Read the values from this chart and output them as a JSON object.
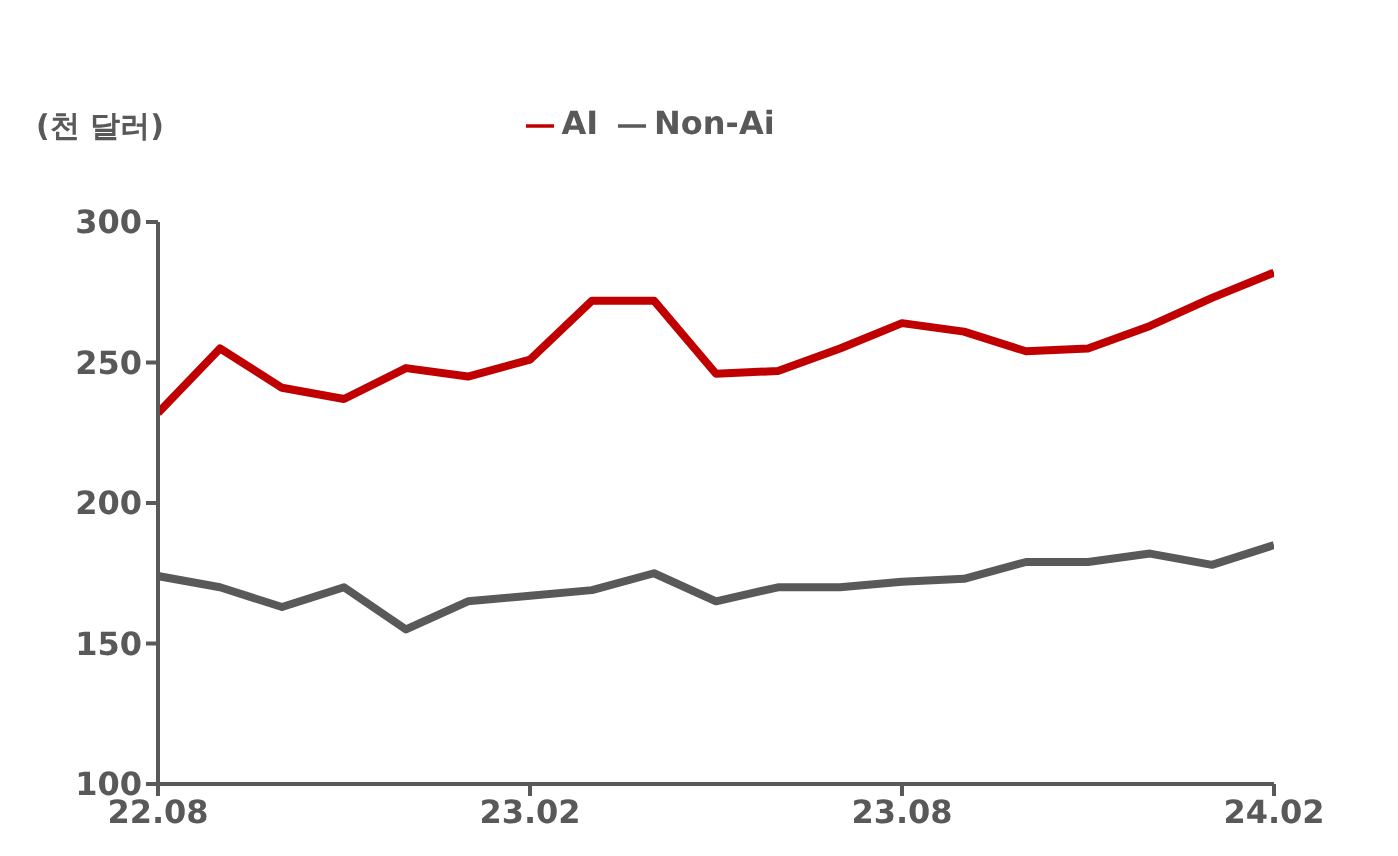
{
  "chart_data": {
    "type": "line",
    "ylabel": "(천 달러)",
    "categories": [
      "22.08",
      null,
      null,
      null,
      null,
      null,
      "23.02",
      null,
      null,
      null,
      null,
      null,
      "23.08",
      null,
      null,
      null,
      null,
      null,
      "24.02"
    ],
    "series": [
      {
        "name": "AI",
        "color": "#c00000",
        "values": [
          232,
          255,
          241,
          237,
          248,
          245,
          251,
          272,
          272,
          246,
          247,
          255,
          264,
          261,
          254,
          255,
          263,
          273,
          282
        ]
      },
      {
        "name": "Non-Ai",
        "color": "#595959",
        "values": [
          174,
          170,
          163,
          170,
          155,
          165,
          167,
          169,
          175,
          165,
          170,
          170,
          172,
          173,
          179,
          179,
          182,
          178,
          185
        ]
      }
    ],
    "ylim": [
      100,
      300
    ],
    "yticks": [
      100,
      150,
      200,
      250,
      300
    ],
    "grid": false,
    "legend": "top",
    "marker": "none",
    "line_style": "solid"
  }
}
